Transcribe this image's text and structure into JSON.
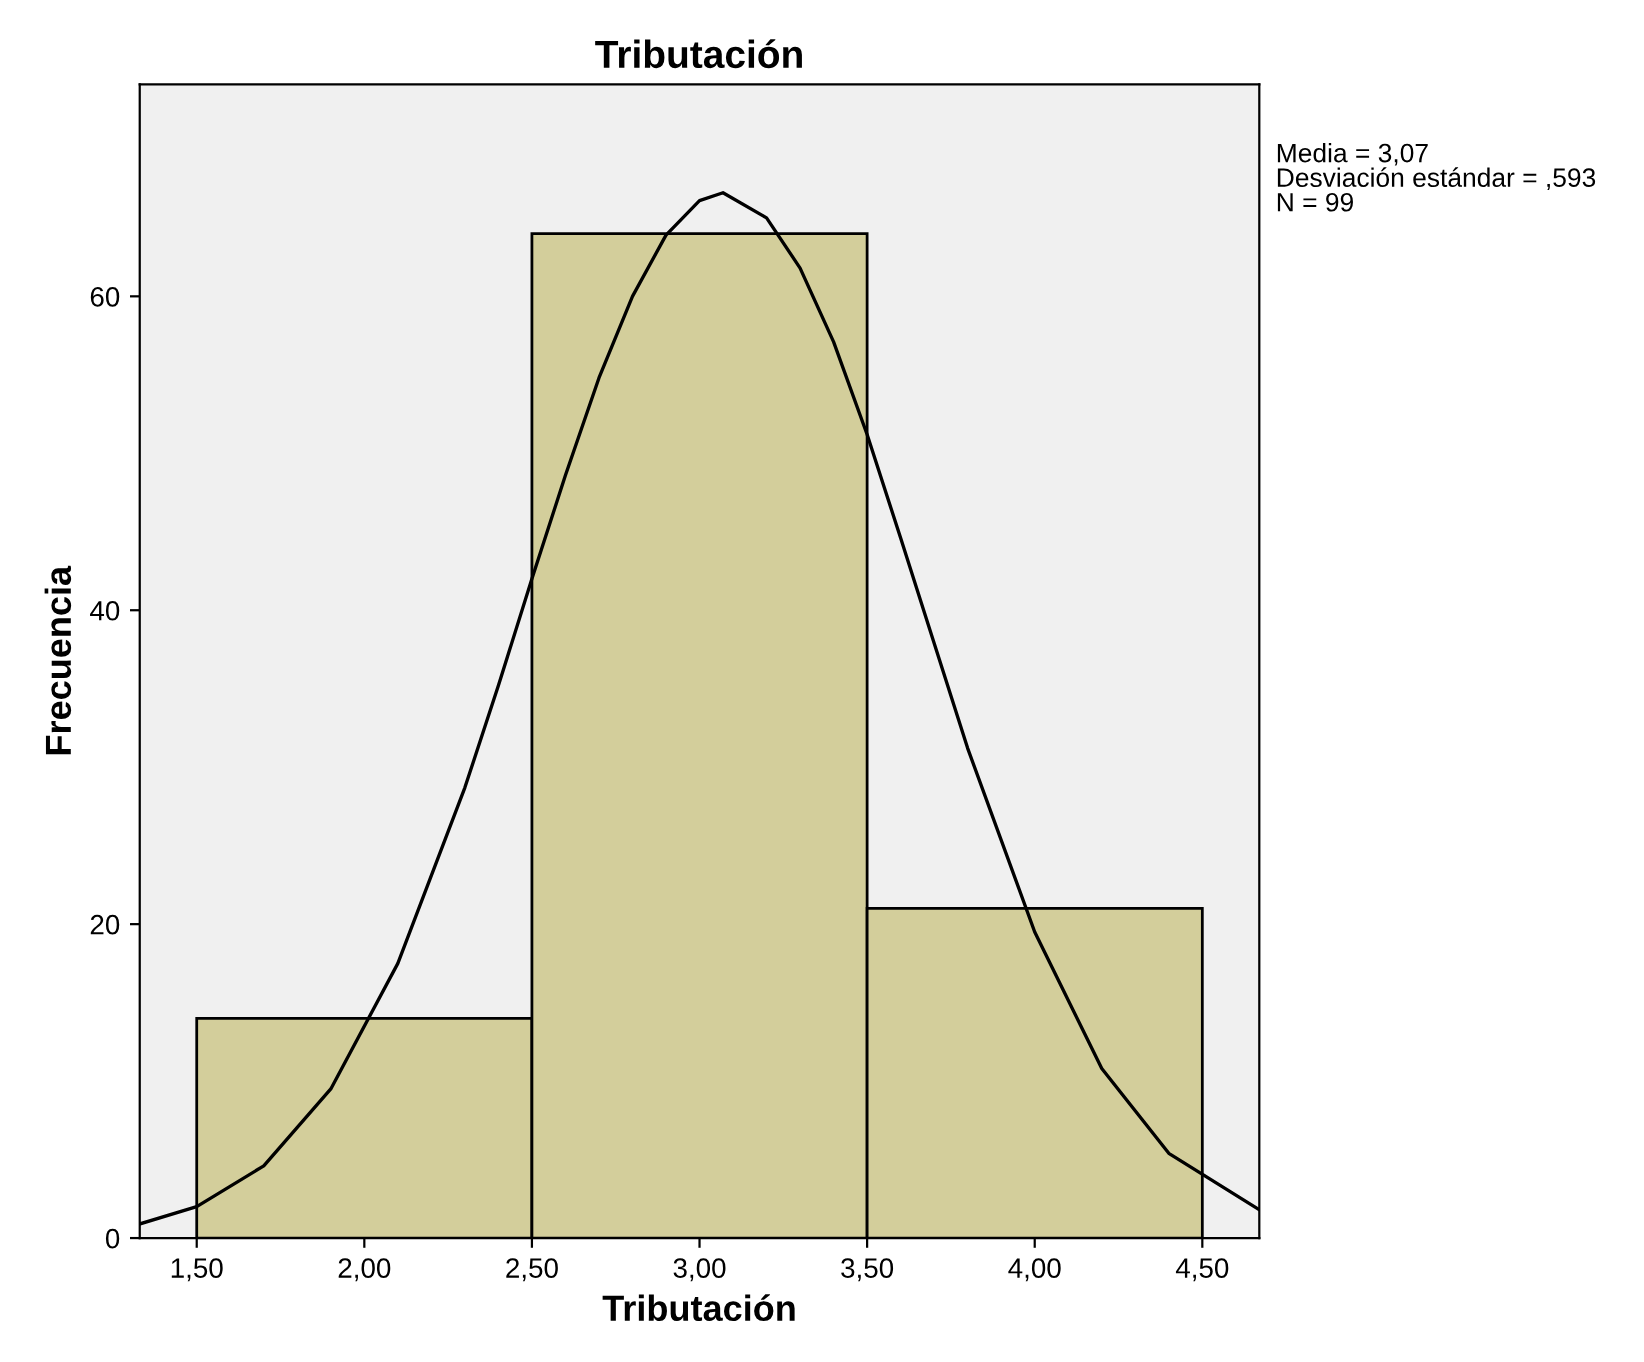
{
  "chart_data": {
    "type": "histogram",
    "title": "Tributación",
    "xlabel": "Tributación",
    "ylabel": "Frecuencia",
    "bins": [
      1.5,
      2.5,
      3.5,
      4.5
    ],
    "values": [
      14,
      64,
      21
    ],
    "color": "#d3ce9b",
    "series": [
      {
        "type": "line",
        "color": "#000000",
        "x": [
          1.33,
          1.5,
          1.7,
          1.9,
          2.1,
          2.3,
          2.4,
          2.5,
          2.6,
          2.7,
          2.8,
          2.9,
          3.0,
          3.07,
          3.2,
          3.3,
          3.4,
          3.5,
          3.6,
          3.7,
          3.8,
          4.0,
          4.2,
          4.4,
          4.67
        ],
        "values": [
          0.9,
          2.0,
          4.6,
          9.5,
          17.5,
          28.7,
          35.2,
          42.0,
          48.6,
          54.8,
          60.0,
          63.9,
          66.1,
          66.6,
          65.0,
          61.8,
          57.1,
          51.2,
          44.6,
          37.9,
          31.2,
          19.5,
          10.8,
          5.4,
          1.8
        ]
      }
    ],
    "xlim": [
      1.33,
      4.67
    ],
    "ylim": [
      0,
      73.5
    ],
    "xticks": [
      {
        "value": 1.5,
        "label": "1,50"
      },
      {
        "value": 2.0,
        "label": "2,00"
      },
      {
        "value": 2.5,
        "label": "2,50"
      },
      {
        "value": 3.0,
        "label": "3,00"
      },
      {
        "value": 3.5,
        "label": "3,50"
      },
      {
        "value": 4.0,
        "label": "4,00"
      },
      {
        "value": 4.5,
        "label": "4,50"
      }
    ],
    "yticks": [
      0,
      20,
      40,
      60
    ],
    "annotations": [
      "Media = 3,07\nDesviación estándar = ,593\nN = 99"
    ],
    "grid": false,
    "legend": false
  }
}
